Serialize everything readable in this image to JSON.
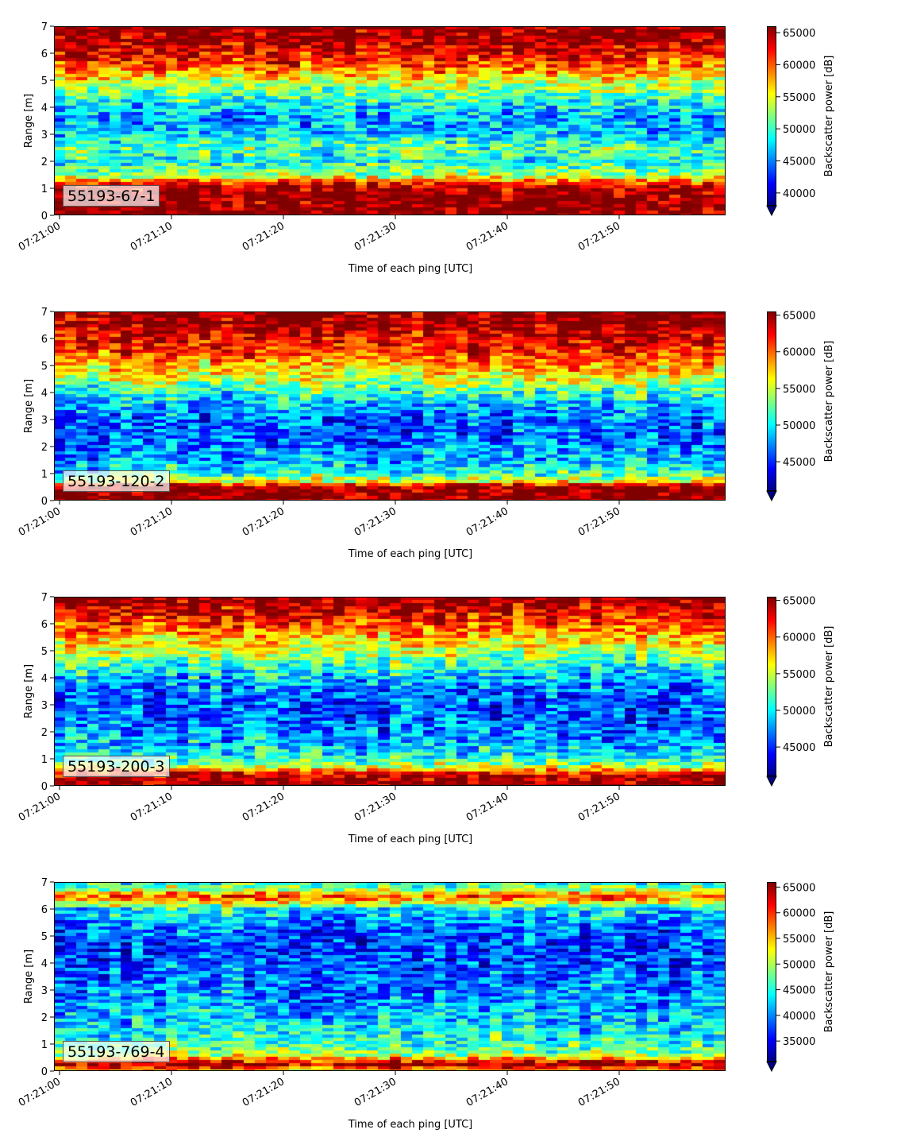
{
  "chart_data": [
    {
      "type": "heatmap",
      "label": "55193-67-1",
      "xlabel": "Time of each ping [UTC]",
      "ylabel": "Range [m]",
      "colorbar_label": "Backscatter power [dB]",
      "colormap": "jet",
      "x_ticks": [
        "07:21:00",
        "07:21:10",
        "07:21:20",
        "07:21:30",
        "07:21:40",
        "07:21:50"
      ],
      "y_ticks": [
        0,
        1,
        2,
        3,
        4,
        5,
        6,
        7
      ],
      "ylim": [
        0,
        7
      ],
      "clim": [
        38000,
        66000
      ],
      "colorbar_ticks": [
        40000,
        45000,
        50000,
        55000,
        60000,
        65000
      ],
      "colorbar_extend": "min",
      "profile": [
        {
          "range": 0.1,
          "value": 66000
        },
        {
          "range": 0.7,
          "value": 66000
        },
        {
          "range": 1.1,
          "value": 64000
        },
        {
          "range": 1.5,
          "value": 53000
        },
        {
          "range": 2.0,
          "value": 49000
        },
        {
          "range": 2.5,
          "value": 51000
        },
        {
          "range": 3.0,
          "value": 47000
        },
        {
          "range": 3.5,
          "value": 46000
        },
        {
          "range": 4.0,
          "value": 48000
        },
        {
          "range": 4.5,
          "value": 51000
        },
        {
          "range": 5.0,
          "value": 55000
        },
        {
          "range": 5.5,
          "value": 60000
        },
        {
          "range": 6.0,
          "value": 63000
        },
        {
          "range": 6.5,
          "value": 65000
        },
        {
          "range": 7.0,
          "value": 66000
        }
      ]
    },
    {
      "type": "heatmap",
      "label": "55193-120-2",
      "xlabel": "Time of each ping [UTC]",
      "ylabel": "Range [m]",
      "colorbar_label": "Backscatter power [dB]",
      "colormap": "jet",
      "x_ticks": [
        "07:21:00",
        "07:21:10",
        "07:21:20",
        "07:21:30",
        "07:21:40",
        "07:21:50"
      ],
      "y_ticks": [
        0,
        1,
        2,
        3,
        4,
        5,
        6,
        7
      ],
      "ylim": [
        0,
        7
      ],
      "clim": [
        41000,
        65500
      ],
      "colorbar_ticks": [
        45000,
        50000,
        55000,
        60000,
        65000
      ],
      "colorbar_extend": "min",
      "profile": [
        {
          "range": 0.1,
          "value": 65500
        },
        {
          "range": 0.5,
          "value": 65500
        },
        {
          "range": 0.7,
          "value": 56000
        },
        {
          "range": 1.0,
          "value": 51000
        },
        {
          "range": 1.5,
          "value": 48000
        },
        {
          "range": 2.0,
          "value": 47000
        },
        {
          "range": 2.5,
          "value": 46000
        },
        {
          "range": 3.0,
          "value": 46500
        },
        {
          "range": 3.5,
          "value": 48000
        },
        {
          "range": 4.0,
          "value": 51000
        },
        {
          "range": 4.5,
          "value": 55000
        },
        {
          "range": 5.0,
          "value": 58000
        },
        {
          "range": 5.5,
          "value": 61000
        },
        {
          "range": 6.0,
          "value": 63000
        },
        {
          "range": 6.5,
          "value": 64500
        },
        {
          "range": 7.0,
          "value": 65500
        }
      ]
    },
    {
      "type": "heatmap",
      "label": "55193-200-3",
      "xlabel": "Time of each ping [UTC]",
      "ylabel": "Range [m]",
      "colorbar_label": "Backscatter power [dB]",
      "colormap": "jet",
      "x_ticks": [
        "07:21:00",
        "07:21:10",
        "07:21:20",
        "07:21:30",
        "07:21:40",
        "07:21:50"
      ],
      "y_ticks": [
        0,
        1,
        2,
        3,
        4,
        5,
        6,
        7
      ],
      "ylim": [
        0,
        7
      ],
      "clim": [
        41000,
        65500
      ],
      "colorbar_ticks": [
        45000,
        50000,
        55000,
        60000,
        65000
      ],
      "colorbar_extend": "min",
      "profile": [
        {
          "range": 0.1,
          "value": 65500
        },
        {
          "range": 0.4,
          "value": 64000
        },
        {
          "range": 0.7,
          "value": 55000
        },
        {
          "range": 1.0,
          "value": 51000
        },
        {
          "range": 1.5,
          "value": 48500
        },
        {
          "range": 2.0,
          "value": 47500
        },
        {
          "range": 2.5,
          "value": 46500
        },
        {
          "range": 3.0,
          "value": 46000
        },
        {
          "range": 3.5,
          "value": 46500
        },
        {
          "range": 4.0,
          "value": 48500
        },
        {
          "range": 4.5,
          "value": 51500
        },
        {
          "range": 5.0,
          "value": 55000
        },
        {
          "range": 5.5,
          "value": 58000
        },
        {
          "range": 6.0,
          "value": 61000
        },
        {
          "range": 6.5,
          "value": 63500
        },
        {
          "range": 7.0,
          "value": 65500
        }
      ]
    },
    {
      "type": "heatmap",
      "label": "55193-769-4",
      "xlabel": "Time of each ping [UTC]",
      "ylabel": "Range [m]",
      "colorbar_label": "Backscatter power [dB]",
      "colormap": "jet",
      "x_ticks": [
        "07:21:00",
        "07:21:10",
        "07:21:20",
        "07:21:30",
        "07:21:40",
        "07:21:50"
      ],
      "y_ticks": [
        0,
        1,
        2,
        3,
        4,
        5,
        6,
        7
      ],
      "ylim": [
        0,
        7
      ],
      "clim": [
        31000,
        66000
      ],
      "colorbar_ticks": [
        35000,
        40000,
        45000,
        50000,
        55000,
        60000,
        65000
      ],
      "colorbar_extend": "min",
      "profile": [
        {
          "range": 0.05,
          "value": 55000
        },
        {
          "range": 0.2,
          "value": 66000
        },
        {
          "range": 0.35,
          "value": 62000
        },
        {
          "range": 0.6,
          "value": 50000
        },
        {
          "range": 1.0,
          "value": 46000
        },
        {
          "range": 1.5,
          "value": 44000
        },
        {
          "range": 2.0,
          "value": 42500
        },
        {
          "range": 2.5,
          "value": 41000
        },
        {
          "range": 3.0,
          "value": 40000
        },
        {
          "range": 3.5,
          "value": 39000
        },
        {
          "range": 4.0,
          "value": 38500
        },
        {
          "range": 4.5,
          "value": 38000
        },
        {
          "range": 5.0,
          "value": 38500
        },
        {
          "range": 5.5,
          "value": 40000
        },
        {
          "range": 6.0,
          "value": 44000
        },
        {
          "range": 6.3,
          "value": 55000
        },
        {
          "range": 6.5,
          "value": 60000
        },
        {
          "range": 6.7,
          "value": 50000
        },
        {
          "range": 7.0,
          "value": 46000
        }
      ]
    }
  ]
}
